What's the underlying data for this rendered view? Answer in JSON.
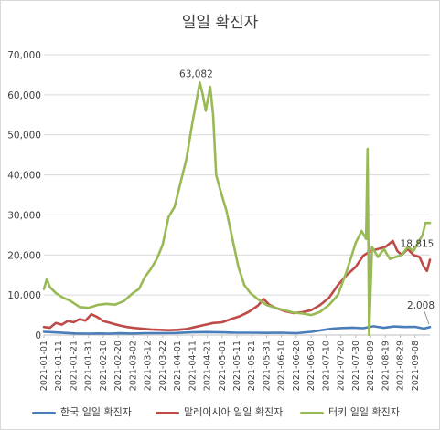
{
  "chart_data": {
    "type": "line",
    "title": "일일 확진자",
    "xlabel": "",
    "ylabel": "",
    "ylim": [
      0,
      70000
    ],
    "yticks": [
      "0",
      "10,000",
      "20,000",
      "30,000",
      "40,000",
      "50,000",
      "60,000",
      "70,000"
    ],
    "ytick_values": [
      0,
      10000,
      20000,
      30000,
      40000,
      50000,
      60000,
      70000
    ],
    "x_range": [
      "2021-01-01",
      "2021-09-18"
    ],
    "xticks": [
      "2021-01-01",
      "2021-01-11",
      "2021-01-21",
      "2021-01-31",
      "2021-02-10",
      "2021-02-20",
      "2021-03-02",
      "2021-03-12",
      "2021-03-22",
      "2021-04-01",
      "2021-04-11",
      "2021-04-21",
      "2021-05-01",
      "2021-05-11",
      "2021-05-21",
      "2021-05-31",
      "2021-06-10",
      "2021-06-20",
      "2021-06-30",
      "2021-07-10",
      "2021-07-20",
      "2021-07-30",
      "2021-08-09",
      "2021-08-19",
      "2021-08-29",
      "2021-09-08"
    ],
    "grid": true,
    "legend_position": "bottom",
    "annotations": [
      {
        "text": "63,082",
        "series": 2,
        "x": "2021-04-16",
        "y": 63082
      },
      {
        "text": "18,815",
        "series": 1,
        "x": "2021-09-18",
        "y": 18815
      },
      {
        "text": "2,008",
        "series": 0,
        "x": "2021-09-18",
        "y": 2008
      }
    ],
    "series": [
      {
        "name": "한국 일일 확진자",
        "color": "#4a7ebb",
        "points": [
          [
            "2021-01-01",
            800
          ],
          [
            "2021-01-08",
            650
          ],
          [
            "2021-01-15",
            520
          ],
          [
            "2021-01-22",
            380
          ],
          [
            "2021-01-31",
            350
          ],
          [
            "2021-02-07",
            380
          ],
          [
            "2021-02-14",
            350
          ],
          [
            "2021-02-21",
            430
          ],
          [
            "2021-03-01",
            360
          ],
          [
            "2021-03-10",
            450
          ],
          [
            "2021-03-20",
            450
          ],
          [
            "2021-03-31",
            500
          ],
          [
            "2021-04-10",
            650
          ],
          [
            "2021-04-20",
            720
          ],
          [
            "2021-05-01",
            650
          ],
          [
            "2021-05-11",
            560
          ],
          [
            "2021-05-21",
            580
          ],
          [
            "2021-05-31",
            520
          ],
          [
            "2021-06-10",
            560
          ],
          [
            "2021-06-20",
            450
          ],
          [
            "2021-06-30",
            790
          ],
          [
            "2021-07-07",
            1200
          ],
          [
            "2021-07-14",
            1600
          ],
          [
            "2021-07-21",
            1750
          ],
          [
            "2021-07-28",
            1850
          ],
          [
            "2021-08-04",
            1700
          ],
          [
            "2021-08-11",
            2200
          ],
          [
            "2021-08-18",
            1800
          ],
          [
            "2021-08-25",
            2150
          ],
          [
            "2021-09-01",
            2000
          ],
          [
            "2021-09-08",
            2050
          ],
          [
            "2021-09-14",
            1600
          ],
          [
            "2021-09-18",
            2008
          ]
        ]
      },
      {
        "name": "말레이시아 일일 확진자",
        "color": "#be4b48",
        "points": [
          [
            "2021-01-01",
            2000
          ],
          [
            "2021-01-05",
            1800
          ],
          [
            "2021-01-09",
            3000
          ],
          [
            "2021-01-13",
            2600
          ],
          [
            "2021-01-17",
            3500
          ],
          [
            "2021-01-21",
            3200
          ],
          [
            "2021-01-25",
            4000
          ],
          [
            "2021-01-29",
            3600
          ],
          [
            "2021-02-02",
            5200
          ],
          [
            "2021-02-06",
            4500
          ],
          [
            "2021-02-10",
            3500
          ],
          [
            "2021-02-14",
            3100
          ],
          [
            "2021-02-18",
            2700
          ],
          [
            "2021-02-22",
            2300
          ],
          [
            "2021-02-26",
            2000
          ],
          [
            "2021-03-02",
            1800
          ],
          [
            "2021-03-08",
            1600
          ],
          [
            "2021-03-14",
            1400
          ],
          [
            "2021-03-20",
            1300
          ],
          [
            "2021-03-26",
            1200
          ],
          [
            "2021-04-01",
            1300
          ],
          [
            "2021-04-07",
            1500
          ],
          [
            "2021-04-13",
            2000
          ],
          [
            "2021-04-19",
            2500
          ],
          [
            "2021-04-25",
            3000
          ],
          [
            "2021-05-01",
            3200
          ],
          [
            "2021-05-07",
            4000
          ],
          [
            "2021-05-13",
            4700
          ],
          [
            "2021-05-19",
            5800
          ],
          [
            "2021-05-25",
            7300
          ],
          [
            "2021-05-29",
            9000
          ],
          [
            "2021-06-02",
            7500
          ],
          [
            "2021-06-06",
            6800
          ],
          [
            "2021-06-12",
            6000
          ],
          [
            "2021-06-18",
            5500
          ],
          [
            "2021-06-24",
            5700
          ],
          [
            "2021-06-30",
            6200
          ],
          [
            "2021-07-06",
            7500
          ],
          [
            "2021-07-12",
            9300
          ],
          [
            "2021-07-18",
            12500
          ],
          [
            "2021-07-24",
            15000
          ],
          [
            "2021-07-30",
            17000
          ],
          [
            "2021-08-04",
            19800
          ],
          [
            "2021-08-09",
            21000
          ],
          [
            "2021-08-14",
            21500
          ],
          [
            "2021-08-19",
            22000
          ],
          [
            "2021-08-24",
            23500
          ],
          [
            "2021-08-27",
            21000
          ],
          [
            "2021-08-30",
            20000
          ],
          [
            "2021-09-03",
            21500
          ],
          [
            "2021-09-07",
            20000
          ],
          [
            "2021-09-11",
            19500
          ],
          [
            "2021-09-14",
            17000
          ],
          [
            "2021-09-16",
            16000
          ],
          [
            "2021-09-18",
            18815
          ]
        ]
      },
      {
        "name": "터키 일일 확진자",
        "color": "#98b954",
        "points": [
          [
            "2021-01-01",
            11500
          ],
          [
            "2021-01-03",
            14000
          ],
          [
            "2021-01-05",
            12000
          ],
          [
            "2021-01-09",
            10500
          ],
          [
            "2021-01-13",
            9500
          ],
          [
            "2021-01-19",
            8500
          ],
          [
            "2021-01-25",
            7000
          ],
          [
            "2021-01-31",
            6800
          ],
          [
            "2021-02-06",
            7500
          ],
          [
            "2021-02-12",
            7800
          ],
          [
            "2021-02-18",
            7600
          ],
          [
            "2021-02-24",
            8500
          ],
          [
            "2021-03-02",
            10500
          ],
          [
            "2021-03-06",
            11500
          ],
          [
            "2021-03-10",
            14500
          ],
          [
            "2021-03-14",
            16500
          ],
          [
            "2021-03-18",
            19000
          ],
          [
            "2021-03-22",
            22500
          ],
          [
            "2021-03-26",
            29500
          ],
          [
            "2021-03-30",
            32000
          ],
          [
            "2021-04-03",
            38000
          ],
          [
            "2021-04-07",
            44000
          ],
          [
            "2021-04-11",
            53000
          ],
          [
            "2021-04-14",
            59000
          ],
          [
            "2021-04-16",
            63082
          ],
          [
            "2021-04-18",
            60000
          ],
          [
            "2021-04-20",
            56000
          ],
          [
            "2021-04-23",
            62000
          ],
          [
            "2021-04-25",
            55000
          ],
          [
            "2021-04-27",
            40000
          ],
          [
            "2021-04-30",
            36000
          ],
          [
            "2021-05-04",
            31000
          ],
          [
            "2021-05-08",
            24000
          ],
          [
            "2021-05-12",
            17000
          ],
          [
            "2021-05-16",
            12500
          ],
          [
            "2021-05-20",
            10500
          ],
          [
            "2021-05-25",
            9000
          ],
          [
            "2021-05-31",
            7500
          ],
          [
            "2021-06-06",
            6800
          ],
          [
            "2021-06-12",
            6200
          ],
          [
            "2021-06-18",
            5600
          ],
          [
            "2021-06-24",
            5400
          ],
          [
            "2021-06-30",
            5000
          ],
          [
            "2021-07-06",
            5800
          ],
          [
            "2021-07-12",
            7500
          ],
          [
            "2021-07-18",
            10000
          ],
          [
            "2021-07-24",
            16000
          ],
          [
            "2021-07-30",
            23000
          ],
          [
            "2021-08-03",
            26000
          ],
          [
            "2021-08-06",
            24000
          ],
          [
            "2021-08-07",
            46500
          ],
          [
            "2021-08-08",
            0
          ],
          [
            "2021-08-10",
            22000
          ],
          [
            "2021-08-14",
            19500
          ],
          [
            "2021-08-18",
            21500
          ],
          [
            "2021-08-22",
            19000
          ],
          [
            "2021-08-26",
            19500
          ],
          [
            "2021-08-30",
            20000
          ],
          [
            "2021-09-03",
            22000
          ],
          [
            "2021-09-07",
            21000
          ],
          [
            "2021-09-10",
            23000
          ],
          [
            "2021-09-13",
            25000
          ],
          [
            "2021-09-15",
            28000
          ],
          [
            "2021-09-18",
            28000
          ]
        ]
      }
    ]
  }
}
